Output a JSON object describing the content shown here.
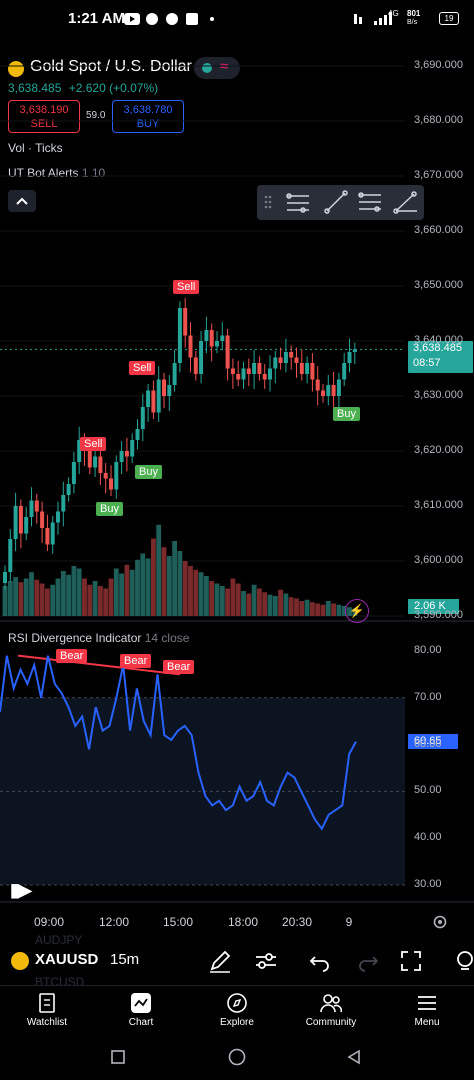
{
  "status_bar": {
    "time": "1:21 AM",
    "net_speed_top": "801",
    "net_speed_bottom": "B/s",
    "net_type": "4G",
    "battery": "19"
  },
  "header": {
    "symbol": "Gold Spot / U.S. Dollar",
    "last_price": "3,638.485",
    "change": "+2.620 (+0.07%)",
    "sell_price": "3,638.190",
    "sell_label": "SELL",
    "spread": "59.0",
    "buy_price": "3,638.780",
    "buy_label": "BUY"
  },
  "indicators": {
    "vol": "Vol · Ticks",
    "ut_bot_name": "UT Bot Alerts",
    "ut_bot_params": "1 10",
    "rsi_name": "RSI Divergence Indicator",
    "rsi_params": "14 close"
  },
  "price_axis": [
    "3,690.000",
    "3,680.000",
    "3,670.000",
    "3,660.000",
    "3,650.000",
    "3,640.000",
    "3,630.000",
    "3,620.000",
    "3,610.000",
    "3,600.000",
    "3,590.000"
  ],
  "current_price_tag": {
    "price": "3,638.485",
    "countdown": "08:57"
  },
  "volume_tag": "2.06 K",
  "rsi_axis": [
    "80.00",
    "70.00",
    "60.00",
    "50.00",
    "40.00",
    "30.00"
  ],
  "rsi_value_tag": "60.65",
  "time_axis": [
    "09:00",
    "12:00",
    "15:00",
    "18:00",
    "20:30",
    "9"
  ],
  "signals": {
    "sell": "Sell",
    "buy": "Buy",
    "bear": "Bear"
  },
  "bottom_toolbar": {
    "symbol": "XAUUSD",
    "interval": "15m",
    "ghost_above": "AUDJPY",
    "ghost_below": "BTCUSD"
  },
  "tabs": [
    "Watchlist",
    "Chart",
    "Explore",
    "Community",
    "Menu"
  ],
  "colors": {
    "up": "#26a69a",
    "down": "#ef5350",
    "rsi_line": "#2962ff",
    "sell_tag": "#f23645",
    "buy_tag": "#4caf50",
    "price_tag": "#26a69a"
  },
  "chart_data": [
    {
      "type": "candlestick",
      "title": "Gold Spot / U.S. Dollar",
      "interval": "15m",
      "ylim": [
        3590,
        3690
      ],
      "x_ticks": [
        "09:00",
        "12:00",
        "15:00",
        "18:00",
        "20:30",
        "9"
      ],
      "last_value": 3638.485
    },
    {
      "type": "line",
      "title": "RSI Divergence Indicator",
      "ylim": [
        30,
        80
      ],
      "last_value": 60.65,
      "series": [
        {
          "values": [
            67,
            79,
            72,
            76,
            73,
            77,
            70,
            79,
            73,
            71,
            68,
            64,
            66,
            59,
            68,
            63,
            64,
            70,
            77,
            63,
            72,
            65,
            62,
            75,
            62,
            61,
            63,
            64,
            62,
            54,
            49,
            47,
            48,
            46,
            47,
            51,
            48,
            49,
            52,
            48,
            47,
            51,
            54,
            53,
            50,
            47,
            44,
            42,
            45,
            46,
            47,
            58,
            60.65
          ]
        }
      ]
    }
  ]
}
